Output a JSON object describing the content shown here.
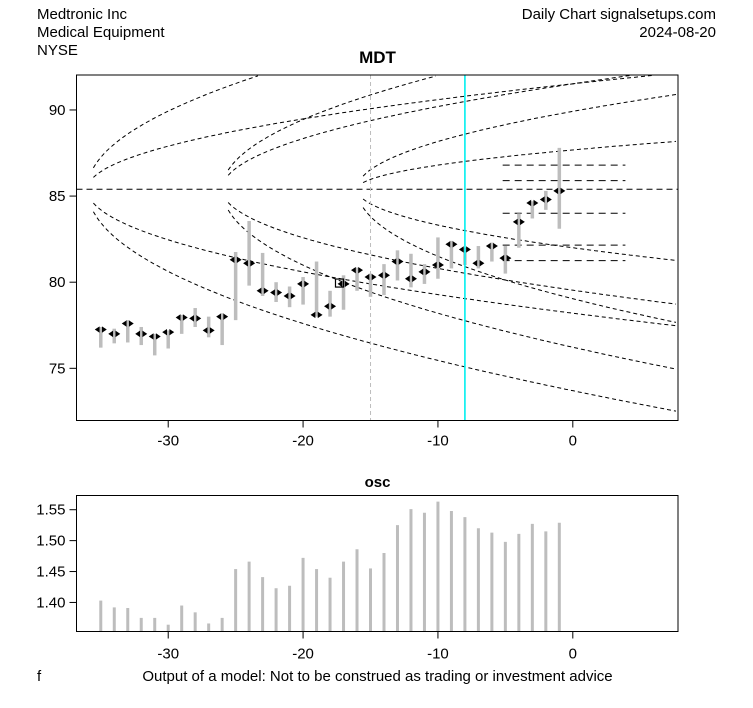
{
  "header": {
    "company": "Medtronic Inc",
    "industry": "Medical Equipment",
    "exchange": "NYSE",
    "chart_type": "Daily Chart signalsetups.com",
    "date": "2024-08-20"
  },
  "footer": {
    "left": "f",
    "disclaimer": "Output of a model: Not to be construed as trading or investment advice"
  },
  "colors": {
    "bars": "#BDBDBD",
    "cyan_line": "#00EFEF",
    "gray_dashed_line": "#BEBEBE",
    "curves": "#000000",
    "frame": "#000000"
  },
  "chart_data": [
    {
      "type": "ohlc-bar",
      "title": "MDT",
      "xlim": [
        -36.8,
        7.8
      ],
      "ylim": [
        71.97,
        92.03
      ],
      "xticks": [
        {
          "v": -30,
          "label": "-30"
        },
        {
          "v": -20,
          "label": "-20"
        },
        {
          "v": -10,
          "label": "-10"
        },
        {
          "v": 0,
          "label": "0"
        }
      ],
      "yticks": [
        {
          "v": 75,
          "label": "75"
        },
        {
          "v": 80,
          "label": "80"
        },
        {
          "v": 85,
          "label": "85"
        },
        {
          "v": 90,
          "label": "90"
        }
      ],
      "pivot_level": 85.4,
      "gray_vline_x": -15,
      "cyan_vline_x": -8,
      "right_levels": {
        "x_start": -5.2,
        "x_end": 3.9,
        "values": [
          86.8,
          85.9,
          84.0,
          82.15,
          81.25
        ]
      },
      "fans": {
        "upper": [
          {
            "x0": -36,
            "a": 1.85
          },
          {
            "x0": -36,
            "a": 1.02
          },
          {
            "x0": -26,
            "a": 1.65
          },
          {
            "x0": -26,
            "a": 1.2
          },
          {
            "x0": -16,
            "a": 1.13
          },
          {
            "x0": -16,
            "a": 0.57
          }
        ],
        "lower": [
          {
            "x0": -36,
            "a": 1.95
          },
          {
            "x0": -36,
            "a": 1.2
          },
          {
            "x0": -26,
            "a": 1.8
          },
          {
            "x0": -26,
            "a": 1.15
          },
          {
            "x0": -16,
            "a": 1.59
          },
          {
            "x0": -16,
            "a": 0.85
          }
        ]
      },
      "square_marker": {
        "x": -17.3,
        "y": 79.95
      },
      "bars": {
        "x": [
          -35,
          -34,
          -33,
          -32,
          -31,
          -30,
          -29,
          -28,
          -27,
          -26,
          -25,
          -24,
          -23,
          -22,
          -21,
          -20,
          -19,
          -18,
          -17,
          -16,
          -15,
          -14,
          -13,
          -12,
          -11,
          -10,
          -9,
          -8,
          -7,
          -6,
          -5,
          -4,
          -3,
          -2,
          -1
        ],
        "high": [
          77.4,
          77.3,
          77.8,
          77.4,
          77.0,
          77.2,
          78.1,
          78.5,
          78.0,
          78.2,
          81.75,
          83.55,
          81.7,
          80.0,
          79.75,
          80.3,
          81.2,
          79.5,
          80.4,
          80.85,
          80.5,
          81.05,
          81.85,
          81.65,
          81.05,
          82.6,
          82.4,
          82.0,
          82.1,
          82.3,
          82.1,
          84.0,
          84.7,
          85.3,
          87.8
        ],
        "low": [
          76.2,
          76.45,
          76.5,
          76.35,
          75.75,
          76.15,
          77.0,
          77.4,
          76.8,
          76.35,
          77.8,
          79.8,
          79.2,
          78.85,
          78.55,
          78.7,
          78.0,
          78.0,
          78.4,
          79.5,
          79.15,
          79.25,
          80.1,
          79.7,
          79.9,
          80.2,
          80.8,
          81.0,
          80.8,
          81.2,
          80.5,
          82.0,
          83.7,
          84.2,
          83.1
        ],
        "mark": [
          77.25,
          77.0,
          77.6,
          77.0,
          76.85,
          77.1,
          77.95,
          77.9,
          77.2,
          78.0,
          81.3,
          81.1,
          79.5,
          79.4,
          79.2,
          79.9,
          78.1,
          78.6,
          79.9,
          80.7,
          80.3,
          80.4,
          81.2,
          80.2,
          80.6,
          81.0,
          82.2,
          81.9,
          81.1,
          82.1,
          81.4,
          83.5,
          84.6,
          84.8,
          85.3
        ]
      }
    },
    {
      "type": "bar",
      "title": "osc",
      "xlim": [
        -36.8,
        7.8
      ],
      "ylim": [
        1.353,
        1.573
      ],
      "xticks": [
        {
          "v": -30,
          "label": "-30"
        },
        {
          "v": -20,
          "label": "-20"
        },
        {
          "v": -10,
          "label": "-10"
        },
        {
          "v": 0,
          "label": "0"
        }
      ],
      "yticks": [
        {
          "v": 1.4,
          "label": "1.40"
        },
        {
          "v": 1.45,
          "label": "1.45"
        },
        {
          "v": 1.5,
          "label": "1.50"
        },
        {
          "v": 1.55,
          "label": "1.55"
        }
      ],
      "x": [
        -35,
        -34,
        -33,
        -32,
        -31,
        -30,
        -29,
        -28,
        -27,
        -26,
        -25,
        -24,
        -23,
        -22,
        -21,
        -20,
        -19,
        -18,
        -17,
        -16,
        -15,
        -14,
        -13,
        -12,
        -11,
        -10,
        -9,
        -8,
        -7,
        -6,
        -5,
        -4,
        -3,
        -2,
        -1
      ],
      "values": [
        1.403,
        1.392,
        1.391,
        1.375,
        1.375,
        1.364,
        1.395,
        1.384,
        1.366,
        1.375,
        1.454,
        1.466,
        1.441,
        1.423,
        1.427,
        1.472,
        1.454,
        1.44,
        1.466,
        1.486,
        1.455,
        1.48,
        1.525,
        1.551,
        1.545,
        1.563,
        1.548,
        1.538,
        1.52,
        1.513,
        1.498,
        1.511,
        1.527,
        1.515,
        1.529
      ]
    }
  ]
}
